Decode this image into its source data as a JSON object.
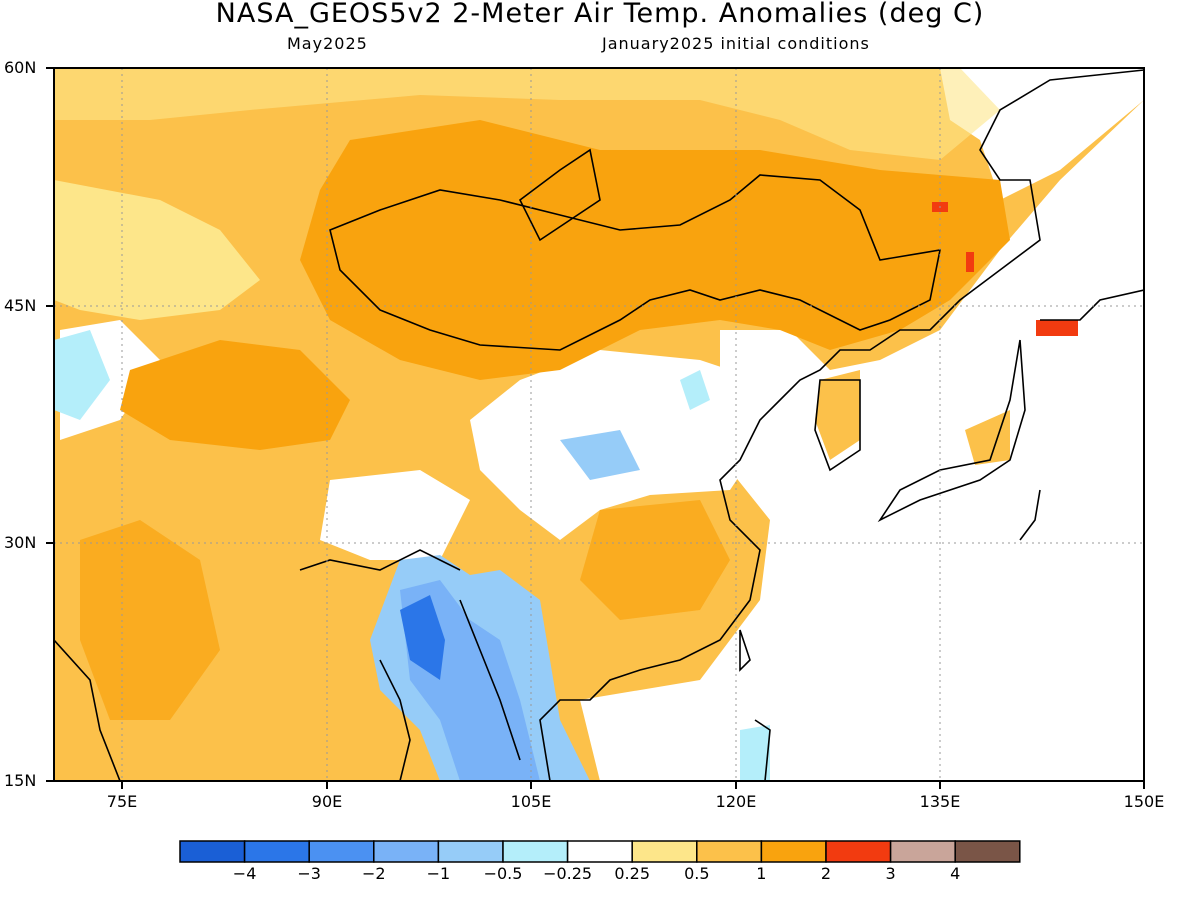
{
  "title": "NASA_GEOS5v2 2-Meter Air Temp. Anomalies (deg C)",
  "subtitle_left": "May2025",
  "subtitle_right": "January2025 initial conditions",
  "map": {
    "lon_range": [
      70,
      150
    ],
    "lat_range": [
      15,
      60
    ],
    "lat_ticks": [
      "60N",
      "45N",
      "30N",
      "15N"
    ],
    "lon_ticks": [
      "75E",
      "90E",
      "105E",
      "120E",
      "135E",
      "150E"
    ],
    "grid": "dotted"
  },
  "legend": {
    "bins": [
      {
        "color": "#1a5fd6"
      },
      {
        "color": "#2b76e8"
      },
      {
        "color": "#4b91f2"
      },
      {
        "color": "#79b2f7"
      },
      {
        "color": "#96ccf8"
      },
      {
        "color": "#b4eefa"
      },
      {
        "color": "#ffffff"
      },
      {
        "color": "#fde68a"
      },
      {
        "color": "#fcc14a"
      },
      {
        "color": "#f9a30e"
      },
      {
        "color": "#f23b10"
      },
      {
        "color": "#c9a59a"
      },
      {
        "color": "#7a5547"
      }
    ],
    "labels": [
      "-4",
      "-3",
      "-2",
      "-1",
      "-0.5",
      "-0.25",
      "0.25",
      "0.5",
      "1",
      "2",
      "3",
      "4"
    ]
  }
}
